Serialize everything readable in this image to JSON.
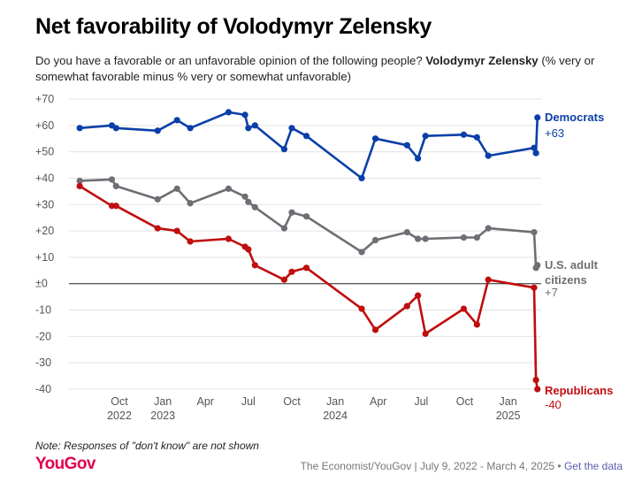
{
  "header": {
    "title": "Net favorability of Volodymyr Zelensky",
    "subtitle_prefix": "Do you have a favorable or an unfavorable opinion of the following people? ",
    "subtitle_bold": "Volodymyr Zelensky",
    "subtitle_suffix": " (% very or somewhat favorable minus % very or somewhat unfavorable)"
  },
  "footer": {
    "note": "Note: Responses of \"don't know\" are not shown",
    "logo": "YouGov",
    "source": "The Economist/YouGov | July 9, 2022 - March 4, 2025 • ",
    "link": "Get the data"
  },
  "colors": {
    "democrats": "#0a3fa8",
    "adults": "#6e6e74",
    "republicans": "#c00d0d"
  },
  "chart_data": {
    "type": "line",
    "x_type": "date",
    "ylim": [
      -40,
      70
    ],
    "yticks": [
      -40,
      -30,
      -20,
      -10,
      0,
      10,
      20,
      30,
      40,
      50,
      60,
      70
    ],
    "ytick_labels": [
      "-40",
      "-30",
      "-20",
      "-10",
      "±0",
      "+10",
      "+20",
      "+30",
      "+40",
      "+50",
      "+60",
      "+70"
    ],
    "xticks": [
      {
        "date": "2022-10-01",
        "label": "Oct",
        "year": "2022"
      },
      {
        "date": "2023-01-01",
        "label": "Jan",
        "year": "2023"
      },
      {
        "date": "2023-04-01",
        "label": "Apr",
        "year": ""
      },
      {
        "date": "2023-07-01",
        "label": "Jul",
        "year": ""
      },
      {
        "date": "2023-10-01",
        "label": "Oct",
        "year": ""
      },
      {
        "date": "2024-01-01",
        "label": "Jan",
        "year": "2024"
      },
      {
        "date": "2024-04-01",
        "label": "Apr",
        "year": ""
      },
      {
        "date": "2024-07-01",
        "label": "Jul",
        "year": ""
      },
      {
        "date": "2024-10-01",
        "label": "Oct",
        "year": ""
      },
      {
        "date": "2025-01-01",
        "label": "Jan",
        "year": "2025"
      }
    ],
    "xlim": [
      "2022-06-20",
      "2025-03-12"
    ],
    "series": [
      {
        "name": "Democrats",
        "value_label": "+63",
        "color_key": "democrats",
        "points": [
          [
            "2022-07-09",
            59
          ],
          [
            "2022-09-15",
            60
          ],
          [
            "2022-09-24",
            59
          ],
          [
            "2022-12-21",
            58
          ],
          [
            "2023-01-31",
            62
          ],
          [
            "2023-02-28",
            59
          ],
          [
            "2023-05-20",
            65
          ],
          [
            "2023-06-24",
            64
          ],
          [
            "2023-07-01",
            59
          ],
          [
            "2023-07-15",
            60
          ],
          [
            "2023-09-15",
            51
          ],
          [
            "2023-10-01",
            59
          ],
          [
            "2023-11-01",
            56
          ],
          [
            "2024-02-26",
            40
          ],
          [
            "2024-03-26",
            55
          ],
          [
            "2024-06-01",
            52.5
          ],
          [
            "2024-06-24",
            47.5
          ],
          [
            "2024-07-10",
            56
          ],
          [
            "2024-09-29",
            56.5
          ],
          [
            "2024-10-27",
            55.5
          ],
          [
            "2024-11-20",
            48.5
          ],
          [
            "2025-02-25",
            51.5
          ],
          [
            "2025-03-01",
            49.5
          ],
          [
            "2025-03-04",
            63
          ]
        ]
      },
      {
        "name": "U.S. adult citizens",
        "value_label": "+7",
        "color_key": "adults",
        "points": [
          [
            "2022-07-09",
            39
          ],
          [
            "2022-09-15",
            39.5
          ],
          [
            "2022-09-24",
            37
          ],
          [
            "2022-12-21",
            32
          ],
          [
            "2023-01-31",
            36
          ],
          [
            "2023-02-28",
            30.5
          ],
          [
            "2023-05-20",
            36
          ],
          [
            "2023-06-24",
            33
          ],
          [
            "2023-07-01",
            31
          ],
          [
            "2023-07-15",
            29
          ],
          [
            "2023-09-15",
            21
          ],
          [
            "2023-10-01",
            27
          ],
          [
            "2023-11-01",
            25.5
          ],
          [
            "2024-02-26",
            12
          ],
          [
            "2024-03-26",
            16.5
          ],
          [
            "2024-06-01",
            19.5
          ],
          [
            "2024-06-24",
            17
          ],
          [
            "2024-07-10",
            17
          ],
          [
            "2024-09-29",
            17.5
          ],
          [
            "2024-10-27",
            17.5
          ],
          [
            "2024-11-20",
            21
          ],
          [
            "2025-02-25",
            19.5
          ],
          [
            "2025-03-01",
            6
          ],
          [
            "2025-03-04",
            7
          ]
        ]
      },
      {
        "name": "Republicans",
        "value_label": "-40",
        "color_key": "republicans",
        "points": [
          [
            "2022-07-09",
            37
          ],
          [
            "2022-09-15",
            29.5
          ],
          [
            "2022-09-24",
            29.5
          ],
          [
            "2022-12-21",
            21
          ],
          [
            "2023-01-31",
            20
          ],
          [
            "2023-02-28",
            16
          ],
          [
            "2023-05-20",
            17
          ],
          [
            "2023-06-24",
            14
          ],
          [
            "2023-07-01",
            13
          ],
          [
            "2023-07-15",
            7
          ],
          [
            "2023-09-15",
            1.5
          ],
          [
            "2023-10-01",
            4.5
          ],
          [
            "2023-11-01",
            6
          ],
          [
            "2024-02-26",
            -9.5
          ],
          [
            "2024-03-26",
            -17.5
          ],
          [
            "2024-06-01",
            -8.5
          ],
          [
            "2024-06-24",
            -4.5
          ],
          [
            "2024-07-10",
            -19
          ],
          [
            "2024-09-29",
            -9.5
          ],
          [
            "2024-10-27",
            -15.5
          ],
          [
            "2024-11-20",
            1.5
          ],
          [
            "2025-02-25",
            -1.5
          ],
          [
            "2025-03-01",
            -36.5
          ],
          [
            "2025-03-04",
            -40
          ]
        ]
      }
    ]
  }
}
